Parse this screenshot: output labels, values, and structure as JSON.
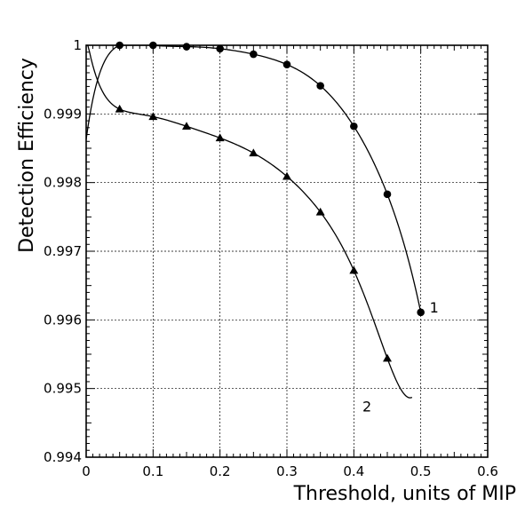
{
  "chart_data": {
    "type": "scatter",
    "xlabel": "Threshold, units of MIP",
    "ylabel": "Detection Efficiency",
    "xlim": [
      0,
      0.6
    ],
    "ylim": [
      0.994,
      1.0
    ],
    "xticks": [
      "0",
      "0.1",
      "0.2",
      "0.3",
      "0.4",
      "0.5",
      "0.6"
    ],
    "yticks": [
      "0.994",
      "0.995",
      "0.996",
      "0.997",
      "0.998",
      "0.999",
      "1"
    ],
    "grid": true,
    "series": [
      {
        "name": "1",
        "marker": "circle",
        "x": [
          0.05,
          0.1,
          0.15,
          0.2,
          0.25,
          0.3,
          0.35,
          0.4,
          0.45,
          0.5
        ],
        "y": [
          1.0,
          1.0,
          0.99998,
          0.99995,
          0.99987,
          0.99972,
          0.99941,
          0.99882,
          0.99783,
          0.99611
        ],
        "fit_curve": true,
        "fit_x_range": [
          0.0,
          0.5
        ]
      },
      {
        "name": "2",
        "marker": "triangle",
        "x": [
          0.05,
          0.1,
          0.15,
          0.2,
          0.25,
          0.3,
          0.35,
          0.4,
          0.45
        ],
        "y": [
          0.99907,
          0.99896,
          0.99882,
          0.99865,
          0.99843,
          0.99809,
          0.99757,
          0.99672,
          0.99544
        ],
        "fit_curve": true,
        "fit_x_range": [
          0.0,
          0.487
        ]
      }
    ]
  }
}
